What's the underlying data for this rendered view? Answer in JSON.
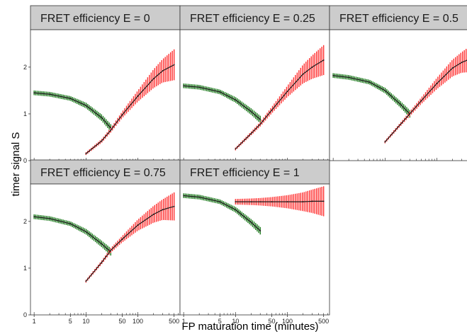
{
  "chart_data": {
    "type": "line",
    "xlabel": "FP maturation time (minutes)",
    "ylabel": "timer signal S",
    "x_scale": "log",
    "xlim": [
      0.85,
      650
    ],
    "ylim": [
      0,
      2.8
    ],
    "x_ticks": [
      1,
      5,
      10,
      50,
      100,
      500
    ],
    "x_tick_labels": [
      "1",
      "5",
      "10",
      "50",
      "100",
      "500"
    ],
    "y_ticks": [
      0,
      1,
      2
    ],
    "y_tick_labels": [
      "0",
      "1",
      "2"
    ],
    "grid": false,
    "colors": {
      "green_series": "#1e7a1e",
      "red_series": "#ff3030",
      "centerline": "#1a1a1a",
      "strip": "#cccccc",
      "border": "#333333"
    },
    "panels": [
      {
        "title": "FRET efficiency E = 0",
        "green": {
          "x": [
            1,
            2,
            5,
            10,
            20,
            30
          ],
          "y": [
            1.45,
            1.42,
            1.33,
            1.18,
            0.92,
            0.7
          ],
          "err": [
            0.05,
            0.05,
            0.05,
            0.06,
            0.07,
            0.08
          ]
        },
        "red": {
          "x": [
            10,
            20,
            30,
            50,
            100,
            200,
            300,
            500
          ],
          "y": [
            0.15,
            0.42,
            0.65,
            0.98,
            1.38,
            1.75,
            1.92,
            2.05
          ],
          "err": [
            0.03,
            0.04,
            0.05,
            0.07,
            0.12,
            0.2,
            0.25,
            0.33
          ]
        }
      },
      {
        "title": "FRET efficiency E = 0.25",
        "green": {
          "x": [
            1,
            2,
            5,
            10,
            20,
            30
          ],
          "y": [
            1.6,
            1.57,
            1.47,
            1.3,
            1.05,
            0.88
          ],
          "err": [
            0.05,
            0.05,
            0.05,
            0.06,
            0.07,
            0.08
          ]
        },
        "red": {
          "x": [
            10,
            20,
            30,
            50,
            100,
            200,
            300,
            500
          ],
          "y": [
            0.25,
            0.58,
            0.78,
            1.08,
            1.48,
            1.85,
            2.0,
            2.15
          ],
          "err": [
            0.03,
            0.04,
            0.05,
            0.07,
            0.12,
            0.2,
            0.25,
            0.32
          ]
        }
      },
      {
        "title": "FRET efficiency E = 0.5",
        "green": {
          "x": [
            1,
            2,
            5,
            10,
            20,
            30
          ],
          "y": [
            1.82,
            1.78,
            1.68,
            1.5,
            1.2,
            1.0
          ],
          "err": [
            0.05,
            0.05,
            0.05,
            0.06,
            0.07,
            0.08
          ]
        },
        "red": {
          "x": [
            10,
            20,
            30,
            50,
            100,
            200,
            300,
            500
          ],
          "y": [
            0.4,
            0.78,
            1.0,
            1.28,
            1.65,
            1.98,
            2.1,
            2.2
          ],
          "err": [
            0.03,
            0.04,
            0.05,
            0.07,
            0.12,
            0.18,
            0.22,
            0.3
          ]
        }
      },
      {
        "title": "FRET efficiency E = 0.75",
        "green": {
          "x": [
            1,
            2,
            5,
            10,
            20,
            30
          ],
          "y": [
            2.1,
            2.06,
            1.95,
            1.78,
            1.52,
            1.35
          ],
          "err": [
            0.05,
            0.05,
            0.05,
            0.06,
            0.07,
            0.08
          ]
        },
        "red": {
          "x": [
            10,
            20,
            30,
            50,
            100,
            200,
            300,
            500
          ],
          "y": [
            0.72,
            1.12,
            1.38,
            1.62,
            1.92,
            2.15,
            2.25,
            2.32
          ],
          "err": [
            0.03,
            0.04,
            0.05,
            0.07,
            0.12,
            0.18,
            0.22,
            0.3
          ]
        }
      },
      {
        "title": "FRET efficiency E = 1",
        "green": {
          "x": [
            1,
            2,
            5,
            10,
            20,
            30
          ],
          "y": [
            2.55,
            2.52,
            2.42,
            2.25,
            1.98,
            1.8
          ],
          "err": [
            0.05,
            0.05,
            0.05,
            0.06,
            0.07,
            0.08
          ]
        },
        "red": {
          "x": [
            10,
            20,
            30,
            50,
            100,
            200,
            300,
            500
          ],
          "y": [
            2.42,
            2.42,
            2.42,
            2.42,
            2.42,
            2.42,
            2.43,
            2.43
          ],
          "err": [
            0.06,
            0.07,
            0.08,
            0.1,
            0.14,
            0.2,
            0.25,
            0.32
          ]
        }
      }
    ]
  }
}
